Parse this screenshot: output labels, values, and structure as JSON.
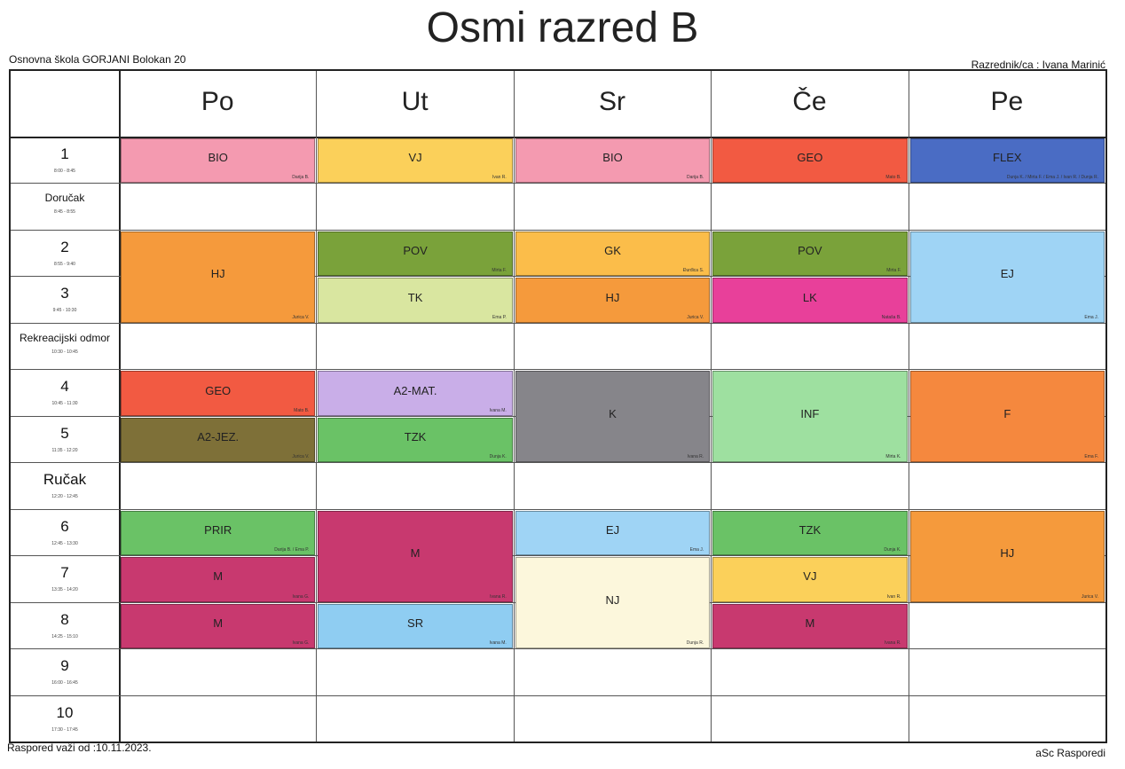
{
  "title": "Osmi razred B",
  "school": "Osnovna škola GORJANI  Bolokan 20",
  "teacher_label": "Razrednik/ca : Ivana Marinić",
  "footer_left": "Raspored važi od :10.11.2023.",
  "footer_right": "aSc Rasporedi",
  "days": [
    "Po",
    "Ut",
    "Sr",
    "Če",
    "Pe"
  ],
  "rows": [
    {
      "label": "1",
      "time": "8:00 - 8:45"
    },
    {
      "label": "Doručak",
      "time": "8:45 - 8:55"
    },
    {
      "label": "2",
      "time": "8:55 - 9:40"
    },
    {
      "label": "3",
      "time": "9:45 - 10:30"
    },
    {
      "label": "Rekreacijski odmor",
      "time": "10:30 - 10:45"
    },
    {
      "label": "4",
      "time": "10:45 - 11:30"
    },
    {
      "label": "5",
      "time": "11:35 - 12:20"
    },
    {
      "label": "Ručak",
      "time": "12:20 - 12:45"
    },
    {
      "label": "6",
      "time": "12:45 - 13:30"
    },
    {
      "label": "7",
      "time": "13:35 - 14:20"
    },
    {
      "label": "8",
      "time": "14:25 - 15:10"
    },
    {
      "label": "9",
      "time": "16:00 - 16:45"
    },
    {
      "label": "10",
      "time": "17:30 - 17:45"
    }
  ],
  "lessons": [
    {
      "day": 0,
      "row": 0,
      "span": 1,
      "subject": "BIO",
      "teacher": "Darija B.",
      "color": "#f49ab0"
    },
    {
      "day": 1,
      "row": 0,
      "span": 1,
      "subject": "VJ",
      "teacher": "Ivan R.",
      "color": "#fbd05a"
    },
    {
      "day": 2,
      "row": 0,
      "span": 1,
      "subject": "BIO",
      "teacher": "Darija B.",
      "color": "#f49ab0"
    },
    {
      "day": 3,
      "row": 0,
      "span": 1,
      "subject": "GEO",
      "teacher": "Mato B.",
      "color": "#f25a42"
    },
    {
      "day": 4,
      "row": 0,
      "span": 1,
      "subject": "FLEX",
      "teacher": "Dunja K. / Mirta F. / Ema J. / Ivan R. / Dunja R.",
      "color": "#4a6cc4"
    },
    {
      "day": 0,
      "row": 2,
      "span": 2,
      "subject": "HJ",
      "teacher": "Jurica V.",
      "color": "#f59a3c"
    },
    {
      "day": 1,
      "row": 2,
      "span": 1,
      "subject": "POV",
      "teacher": "Mirta F.",
      "color": "#7aa23a"
    },
    {
      "day": 1,
      "row": 3,
      "span": 1,
      "subject": "TK",
      "teacher": "Ema P.",
      "color": "#d9e6a0"
    },
    {
      "day": 2,
      "row": 2,
      "span": 1,
      "subject": "GK",
      "teacher": "Đurđica S.",
      "color": "#fbbd4a"
    },
    {
      "day": 2,
      "row": 3,
      "span": 1,
      "subject": "HJ",
      "teacher": "Jurica V.",
      "color": "#f59a3c"
    },
    {
      "day": 3,
      "row": 2,
      "span": 1,
      "subject": "POV",
      "teacher": "Mirta F.",
      "color": "#7aa23a"
    },
    {
      "day": 3,
      "row": 3,
      "span": 1,
      "subject": "LK",
      "teacher": "Nataša B.",
      "color": "#e8409a"
    },
    {
      "day": 4,
      "row": 2,
      "span": 2,
      "subject": "EJ",
      "teacher": "Ema J.",
      "color": "#9fd4f5"
    },
    {
      "day": 0,
      "row": 5,
      "span": 1,
      "subject": "GEO",
      "teacher": "Mato B.",
      "color": "#f25a42"
    },
    {
      "day": 0,
      "row": 6,
      "span": 1,
      "subject": "A2-JEZ.",
      "teacher": "Jurica V.",
      "color": "#7e7038"
    },
    {
      "day": 1,
      "row": 5,
      "span": 1,
      "subject": "A2-MAT.",
      "teacher": "Ivana M.",
      "color": "#c9aee8"
    },
    {
      "day": 1,
      "row": 6,
      "span": 1,
      "subject": "TZK",
      "teacher": "Dunja K.",
      "color": "#6ac266"
    },
    {
      "day": 2,
      "row": 5,
      "span": 2,
      "subject": "K",
      "teacher": "Ivana R.",
      "color": "#86858a"
    },
    {
      "day": 3,
      "row": 5,
      "span": 2,
      "subject": "INF",
      "teacher": "Mirta K.",
      "color": "#9ee0a0"
    },
    {
      "day": 4,
      "row": 5,
      "span": 2,
      "subject": "F",
      "teacher": "Ema F.",
      "color": "#f5883e"
    },
    {
      "day": 0,
      "row": 8,
      "span": 1,
      "subject": "PRIR",
      "teacher": "Darija B. / Ema P.",
      "color": "#6ac266"
    },
    {
      "day": 0,
      "row": 9,
      "span": 1,
      "subject": "M",
      "teacher": "Ivana G.",
      "color": "#c8396f"
    },
    {
      "day": 0,
      "row": 10,
      "span": 1,
      "subject": "M",
      "teacher": "Ivana G.",
      "color": "#c8396f"
    },
    {
      "day": 1,
      "row": 8,
      "span": 2,
      "subject": "M",
      "teacher": "Ivana R.",
      "color": "#c8396f"
    },
    {
      "day": 1,
      "row": 10,
      "span": 1,
      "subject": "SR",
      "teacher": "Ivana M.",
      "color": "#8fcdf2"
    },
    {
      "day": 2,
      "row": 8,
      "span": 1,
      "subject": "EJ",
      "teacher": "Ema J.",
      "color": "#9fd4f5"
    },
    {
      "day": 2,
      "row": 9,
      "span": 2,
      "subject": "NJ",
      "teacher": "Dunja R.",
      "color": "#fcf7dc"
    },
    {
      "day": 3,
      "row": 8,
      "span": 1,
      "subject": "TZK",
      "teacher": "Dunja K.",
      "color": "#6ac266"
    },
    {
      "day": 3,
      "row": 9,
      "span": 1,
      "subject": "VJ",
      "teacher": "Ivan R.",
      "color": "#fbd05a"
    },
    {
      "day": 3,
      "row": 10,
      "span": 1,
      "subject": "M",
      "teacher": "Ivana R.",
      "color": "#c8396f"
    },
    {
      "day": 4,
      "row": 8,
      "span": 2,
      "subject": "HJ",
      "teacher": "Jurica V.",
      "color": "#f59a3c"
    }
  ]
}
